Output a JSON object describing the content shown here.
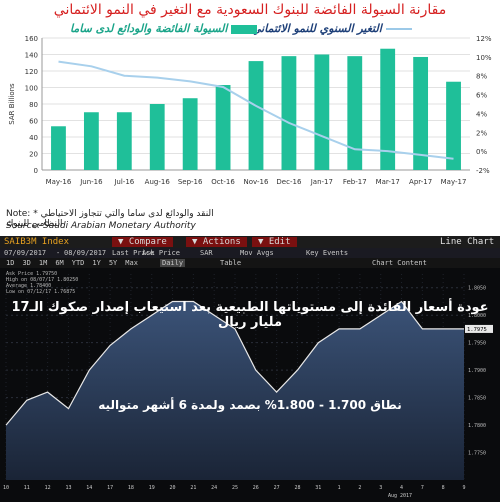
{
  "top_chart": {
    "title": "مقارنة السيولة الفائضة للبنوك السعودية مع التغير في النمو الائتماني",
    "legend_bar": "السيولة الفائضة والودائع لدى ساما",
    "legend_line": "التغير السنوي للنمو الائتماني",
    "note": "Note: * النقد والودائع لدى ساما والتي تتجاوز الاحتياطي النظامي للبنوك",
    "source": "Source: Saudi Arabian Monetary Authority",
    "colors": {
      "bar": "#1fbf99",
      "line": "#a8d0ec",
      "title": "#d62020"
    }
  },
  "bloomberg": {
    "ticker": "SAIB3M Index",
    "compare": "Compare",
    "actions": "Actions",
    "edit": "Edit",
    "line_chart": "Line Chart",
    "date_from": "07/09/2017",
    "date_to": "08/09/2017",
    "last_price": "Last Price",
    "ask_price": "Ask Price",
    "sar": "SAR",
    "mov_avgs": "Mov Avgs",
    "key_events": "Key Events",
    "timeframes": [
      "1D",
      "3D",
      "1M",
      "6M",
      "YTD",
      "1Y",
      "5Y",
      "Max"
    ],
    "daily": "Daily",
    "table": "Table",
    "chart_content": "Chart Content",
    "mini_legend": [
      "Ask Price",
      "High on 08/07/17",
      "Average",
      "Low on 07/12/17"
    ],
    "mini_legend_values": [
      "1.79750",
      "1.80250",
      "1.78400",
      "1.76875"
    ],
    "headline": "عودة أسعار الفائدة إلى مستوياتها الطبيعية بعد استيعاب إصدار صكوك الـ17 مليار ريال",
    "subline": "نطاق 1.700 - 1.800% بصمد ولمدة 6 أشهر متواليه",
    "month_label": "Aug 2017"
  },
  "chart_data": [
    {
      "type": "bar",
      "title": "مقارنة السيولة الفائضة للبنوك السعودية مع التغير في النمو الائتماني",
      "categories": [
        "May-16",
        "Jun-16",
        "Jul-16",
        "Aug-16",
        "Sep-16",
        "Oct-16",
        "Nov-16",
        "Dec-16",
        "Jan-17",
        "Feb-17",
        "Mar-17",
        "Apr-17",
        "May-17"
      ],
      "ylabel": "SAR Billions",
      "ylim": [
        0,
        160
      ],
      "yticks": [
        0,
        20,
        40,
        60,
        80,
        100,
        120,
        140,
        160
      ],
      "y2lim": [
        -2,
        12
      ],
      "y2ticks": [
        "-2%",
        "0%",
        "2%",
        "4%",
        "6%",
        "8%",
        "10%",
        "12%"
      ],
      "y2ticks_values": [
        -2,
        0,
        2,
        4,
        6,
        8,
        10,
        12
      ],
      "series": [
        {
          "name": "السيولة الفائضة والودائع لدى ساما",
          "type": "bar",
          "axis": "left",
          "values": [
            53,
            70,
            70,
            80,
            87,
            103,
            132,
            138,
            140,
            138,
            147,
            137,
            107
          ]
        },
        {
          "name": "التغير السنوي للنمو الائتماني",
          "type": "line",
          "axis": "right",
          "values": [
            9.5,
            9.0,
            8.0,
            7.8,
            7.4,
            6.8,
            4.8,
            3.0,
            1.6,
            0.2,
            0.0,
            -0.4,
            -0.8
          ]
        }
      ],
      "grid": true
    },
    {
      "type": "area",
      "title": "SAIB3M Index",
      "x": [
        "10",
        "11",
        "12",
        "13",
        "14",
        "17",
        "18",
        "19",
        "20",
        "21",
        "24",
        "25",
        "26",
        "27",
        "28",
        "31",
        "1",
        "2",
        "3",
        "4",
        "7",
        "8",
        "9"
      ],
      "values": [
        1.78,
        1.7845,
        1.786,
        1.783,
        1.79,
        1.7945,
        1.7975,
        1.8,
        1.8025,
        1.8025,
        1.8,
        1.7975,
        1.79,
        1.786,
        1.79,
        1.795,
        1.7975,
        1.7975,
        1.8,
        1.8025,
        1.7975,
        1.7975,
        1.7975
      ],
      "ylim": [
        1.77,
        1.8075
      ],
      "yticks": [
        1.775,
        1.78,
        1.785,
        1.79,
        1.795,
        1.8,
        1.805
      ],
      "last_value": "1.7975",
      "grid": true
    }
  ]
}
